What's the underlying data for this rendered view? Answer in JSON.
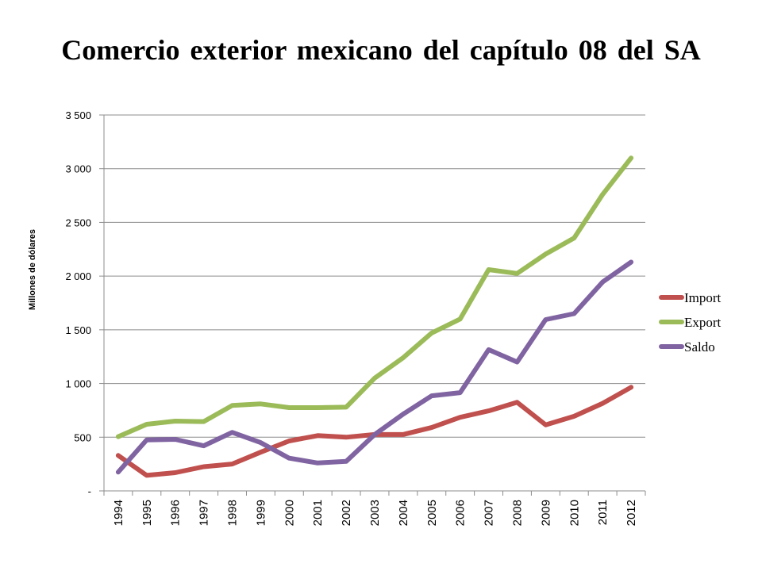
{
  "chart_data": {
    "type": "line",
    "title": "Comercio exterior mexicano del capítulo 08 del SA",
    "ylabel": "Millones de dólares",
    "xlabel": "",
    "ylim": [
      0,
      3500
    ],
    "yticks": [
      0,
      500,
      1000,
      1500,
      2000,
      2500,
      3000,
      3500
    ],
    "ytick_labels": [
      "-",
      "500",
      "1 000",
      "1 500",
      "2 000",
      "2 500",
      "3 000",
      "3 500"
    ],
    "grid": true,
    "legend_position": "right",
    "categories": [
      "1994",
      "1995",
      "1996",
      "1997",
      "1998",
      "1999",
      "2000",
      "2001",
      "2002",
      "2003",
      "2004",
      "2005",
      "2006",
      "2007",
      "2008",
      "2009",
      "2010",
      "2011",
      "2012"
    ],
    "series": [
      {
        "name": "Import",
        "color": "#c0504d",
        "values": [
          330,
          145,
          170,
          225,
          250,
          360,
          465,
          515,
          500,
          525,
          525,
          590,
          685,
          745,
          825,
          615,
          695,
          815,
          965
        ]
      },
      {
        "name": "Export",
        "color": "#9bbb59",
        "values": [
          505,
          620,
          650,
          645,
          795,
          810,
          775,
          775,
          780,
          1050,
          1240,
          1470,
          1600,
          2060,
          2025,
          2205,
          2355,
          2760,
          3100
        ]
      },
      {
        "name": "Saldo",
        "color": "#8064a2",
        "values": [
          175,
          475,
          480,
          420,
          545,
          450,
          305,
          260,
          275,
          525,
          715,
          885,
          915,
          1315,
          1200,
          1595,
          1650,
          1945,
          2130
        ]
      }
    ]
  }
}
